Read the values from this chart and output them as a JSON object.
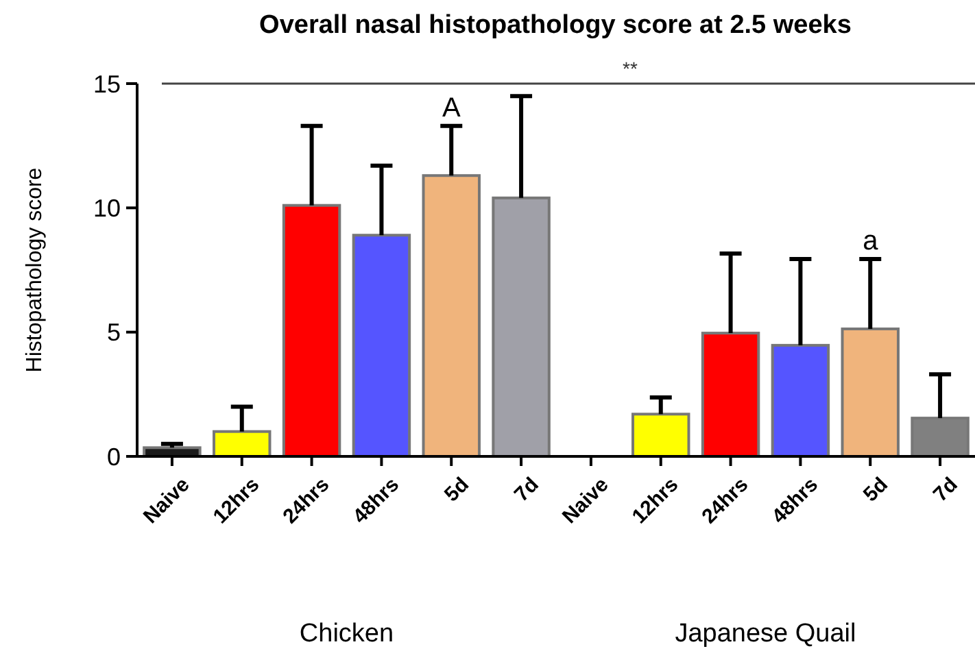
{
  "chart_data": {
    "type": "bar",
    "title": "Overall nasal histopathology score at 2.5 weeks",
    "ylabel": "Histopathology score",
    "categories": [
      "Naive",
      "12hrs",
      "24hrs",
      "48hrs",
      "5d",
      "7d",
      "Naive",
      "12hrs",
      "24hrs",
      "48hrs",
      "5d",
      "7d"
    ],
    "values": [
      0.35,
      1.0,
      10.1,
      8.9,
      11.3,
      10.4,
      0,
      1.7,
      4.96,
      4.47,
      5.13,
      1.54
    ],
    "errors": [
      0.15,
      1.0,
      3.2,
      2.8,
      2.0,
      4.1,
      null,
      0.67,
      3.2,
      3.47,
      2.81,
      1.76
    ],
    "colors": [
      "#1a1a1a",
      "#ffff00",
      "#ff0000",
      "#5555ff",
      "#f0b47c",
      "#a0a0a8",
      "#ffffff",
      "#ffff00",
      "#ff0000",
      "#5555ff",
      "#f0b47c",
      "#808080"
    ],
    "value_labels": [
      null,
      null,
      null,
      null,
      "A",
      null,
      null,
      null,
      null,
      null,
      "a",
      null
    ],
    "ylim": [
      0,
      15
    ],
    "yticks": [
      0,
      5,
      10,
      15
    ],
    "grid": false,
    "ref_lines": [
      {
        "axis": "y",
        "value": 15,
        "label": "**"
      }
    ],
    "annotations": [
      "Chicken",
      "Japanese Quail"
    ]
  }
}
